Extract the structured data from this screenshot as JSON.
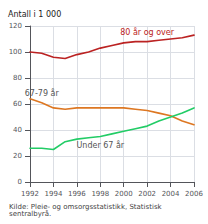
{
  "chart_data": {
    "type": "line",
    "ylabel": "Antall i 1 000",
    "annotations": [
      "Kilde: Pleie- og omsorgsstatistikk, Statistisk sentralbyrå."
    ],
    "x": [
      1992,
      1993,
      1994,
      1995,
      1996,
      1997,
      1998,
      1999,
      2000,
      2001,
      2002,
      2003,
      2004,
      2005,
      2006
    ],
    "series": [
      {
        "name": "80 år og over",
        "color": "#bb2222",
        "values": [
          100,
          99,
          96,
          95,
          98,
          100,
          103,
          105,
          107,
          108,
          108,
          109,
          110,
          111,
          113
        ]
      },
      {
        "name": "67-79 år",
        "color": "#dd7722",
        "values": [
          64,
          61,
          57,
          56,
          57,
          57,
          57,
          57,
          57,
          56,
          55,
          53,
          51,
          47,
          44
        ]
      },
      {
        "name": "Under 67 år",
        "color": "#22cc66",
        "values": [
          26,
          26,
          25,
          31,
          33,
          34,
          35,
          37,
          39,
          41,
          43,
          47,
          50,
          53,
          57
        ]
      }
    ],
    "xlim": [
      1992,
      2006
    ],
    "xticks": [
      1992,
      1994,
      1996,
      1998,
      2000,
      2002,
      2004,
      2006
    ],
    "ylim": [
      0,
      120
    ],
    "yticks": [
      0,
      20,
      40,
      60,
      80,
      100,
      120
    ],
    "grid": true
  }
}
